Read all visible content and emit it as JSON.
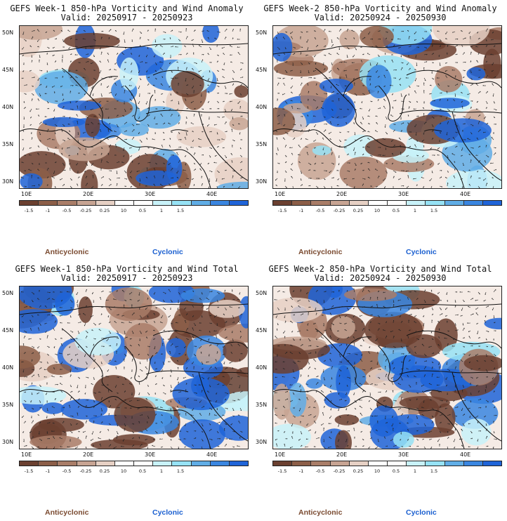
{
  "panels": [
    {
      "title": "GEFS Week-1 850-hPa Vorticity and Wind Anomaly",
      "valid": "Valid: 20250917 - 20250923",
      "seed": 11
    },
    {
      "title": "GEFS Week-2 850-hPa Vorticity and Wind Anomaly",
      "valid": "Valid: 20250924 - 20250930",
      "seed": 27
    },
    {
      "title": "GEFS Week-1 850-hPa Vorticity and Wind Total",
      "valid": "Valid: 20250917 - 20250923",
      "seed": 43
    },
    {
      "title": "GEFS Week-2 850-hPa Vorticity and Wind Total",
      "valid": "Valid: 20250924 - 20250930",
      "seed": 59
    }
  ],
  "lat_labels": [
    "50N",
    "45N",
    "40N",
    "35N",
    "30N"
  ],
  "lon_labels": [
    "10E",
    "20E",
    "30E",
    "40E"
  ],
  "colorbar": {
    "labels": [
      "-1.5",
      "-1",
      "-0.5",
      "-0.25",
      "0.25",
      "0.5",
      "1",
      "1.5"
    ],
    "center_label": "10",
    "colors": [
      "#6b4030",
      "#8c5e48",
      "#a97d68",
      "#c7a493",
      "#e6d0c4",
      "#ffffff",
      "#ffffff",
      "#c8f2f9",
      "#96e2f5",
      "#60ade6",
      "#3a86e0",
      "#1f64d8"
    ]
  },
  "legend": {
    "anticyclonic": "Anticyclonic",
    "cyclonic": "Cyclonic"
  }
}
